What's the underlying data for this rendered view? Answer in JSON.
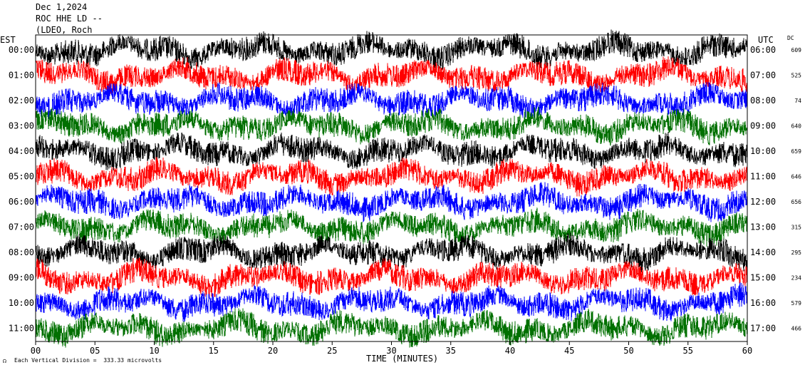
{
  "header": {
    "date": "Dec 1,2024",
    "station": "ROC HHE LD --",
    "network": "(LDEO, Roch"
  },
  "chart_data": {
    "type": "line",
    "title": "",
    "left_timezone": "EST",
    "right_timezone": "UTC",
    "dc_header": "DC",
    "xlabel": "TIME (MINUTES)",
    "xlim": [
      0,
      60
    ],
    "x_ticks": [
      0,
      5,
      10,
      15,
      20,
      25,
      30,
      35,
      40,
      45,
      50,
      55,
      60
    ],
    "x_tick_labels": [
      "00",
      "05",
      "10",
      "15",
      "20",
      "25",
      "30",
      "35",
      "40",
      "45",
      "50",
      "55",
      "60"
    ],
    "trace_colors": [
      "#000000",
      "#ff0000",
      "#0000ff",
      "#007000"
    ],
    "rows": [
      {
        "left": "00:00",
        "right": "06:00",
        "dc": "609"
      },
      {
        "left": "01:00",
        "right": "07:00",
        "dc": "525"
      },
      {
        "left": "02:00",
        "right": "08:00",
        "dc": "74"
      },
      {
        "left": "03:00",
        "right": "09:00",
        "dc": "640"
      },
      {
        "left": "04:00",
        "right": "10:00",
        "dc": "659"
      },
      {
        "left": "05:00",
        "right": "11:00",
        "dc": "646"
      },
      {
        "left": "06:00",
        "right": "12:00",
        "dc": "656"
      },
      {
        "left": "07:00",
        "right": "13:00",
        "dc": "315"
      },
      {
        "left": "08:00",
        "right": "14:00",
        "dc": "295"
      },
      {
        "left": "09:00",
        "right": "15:00",
        "dc": "234"
      },
      {
        "left": "10:00",
        "right": "16:00",
        "dc": "579"
      },
      {
        "left": "11:00",
        "right": "17:00",
        "dc": "466"
      }
    ]
  },
  "footer": {
    "scale_note": "Each Vertical Division =  333.33 microvolts"
  }
}
